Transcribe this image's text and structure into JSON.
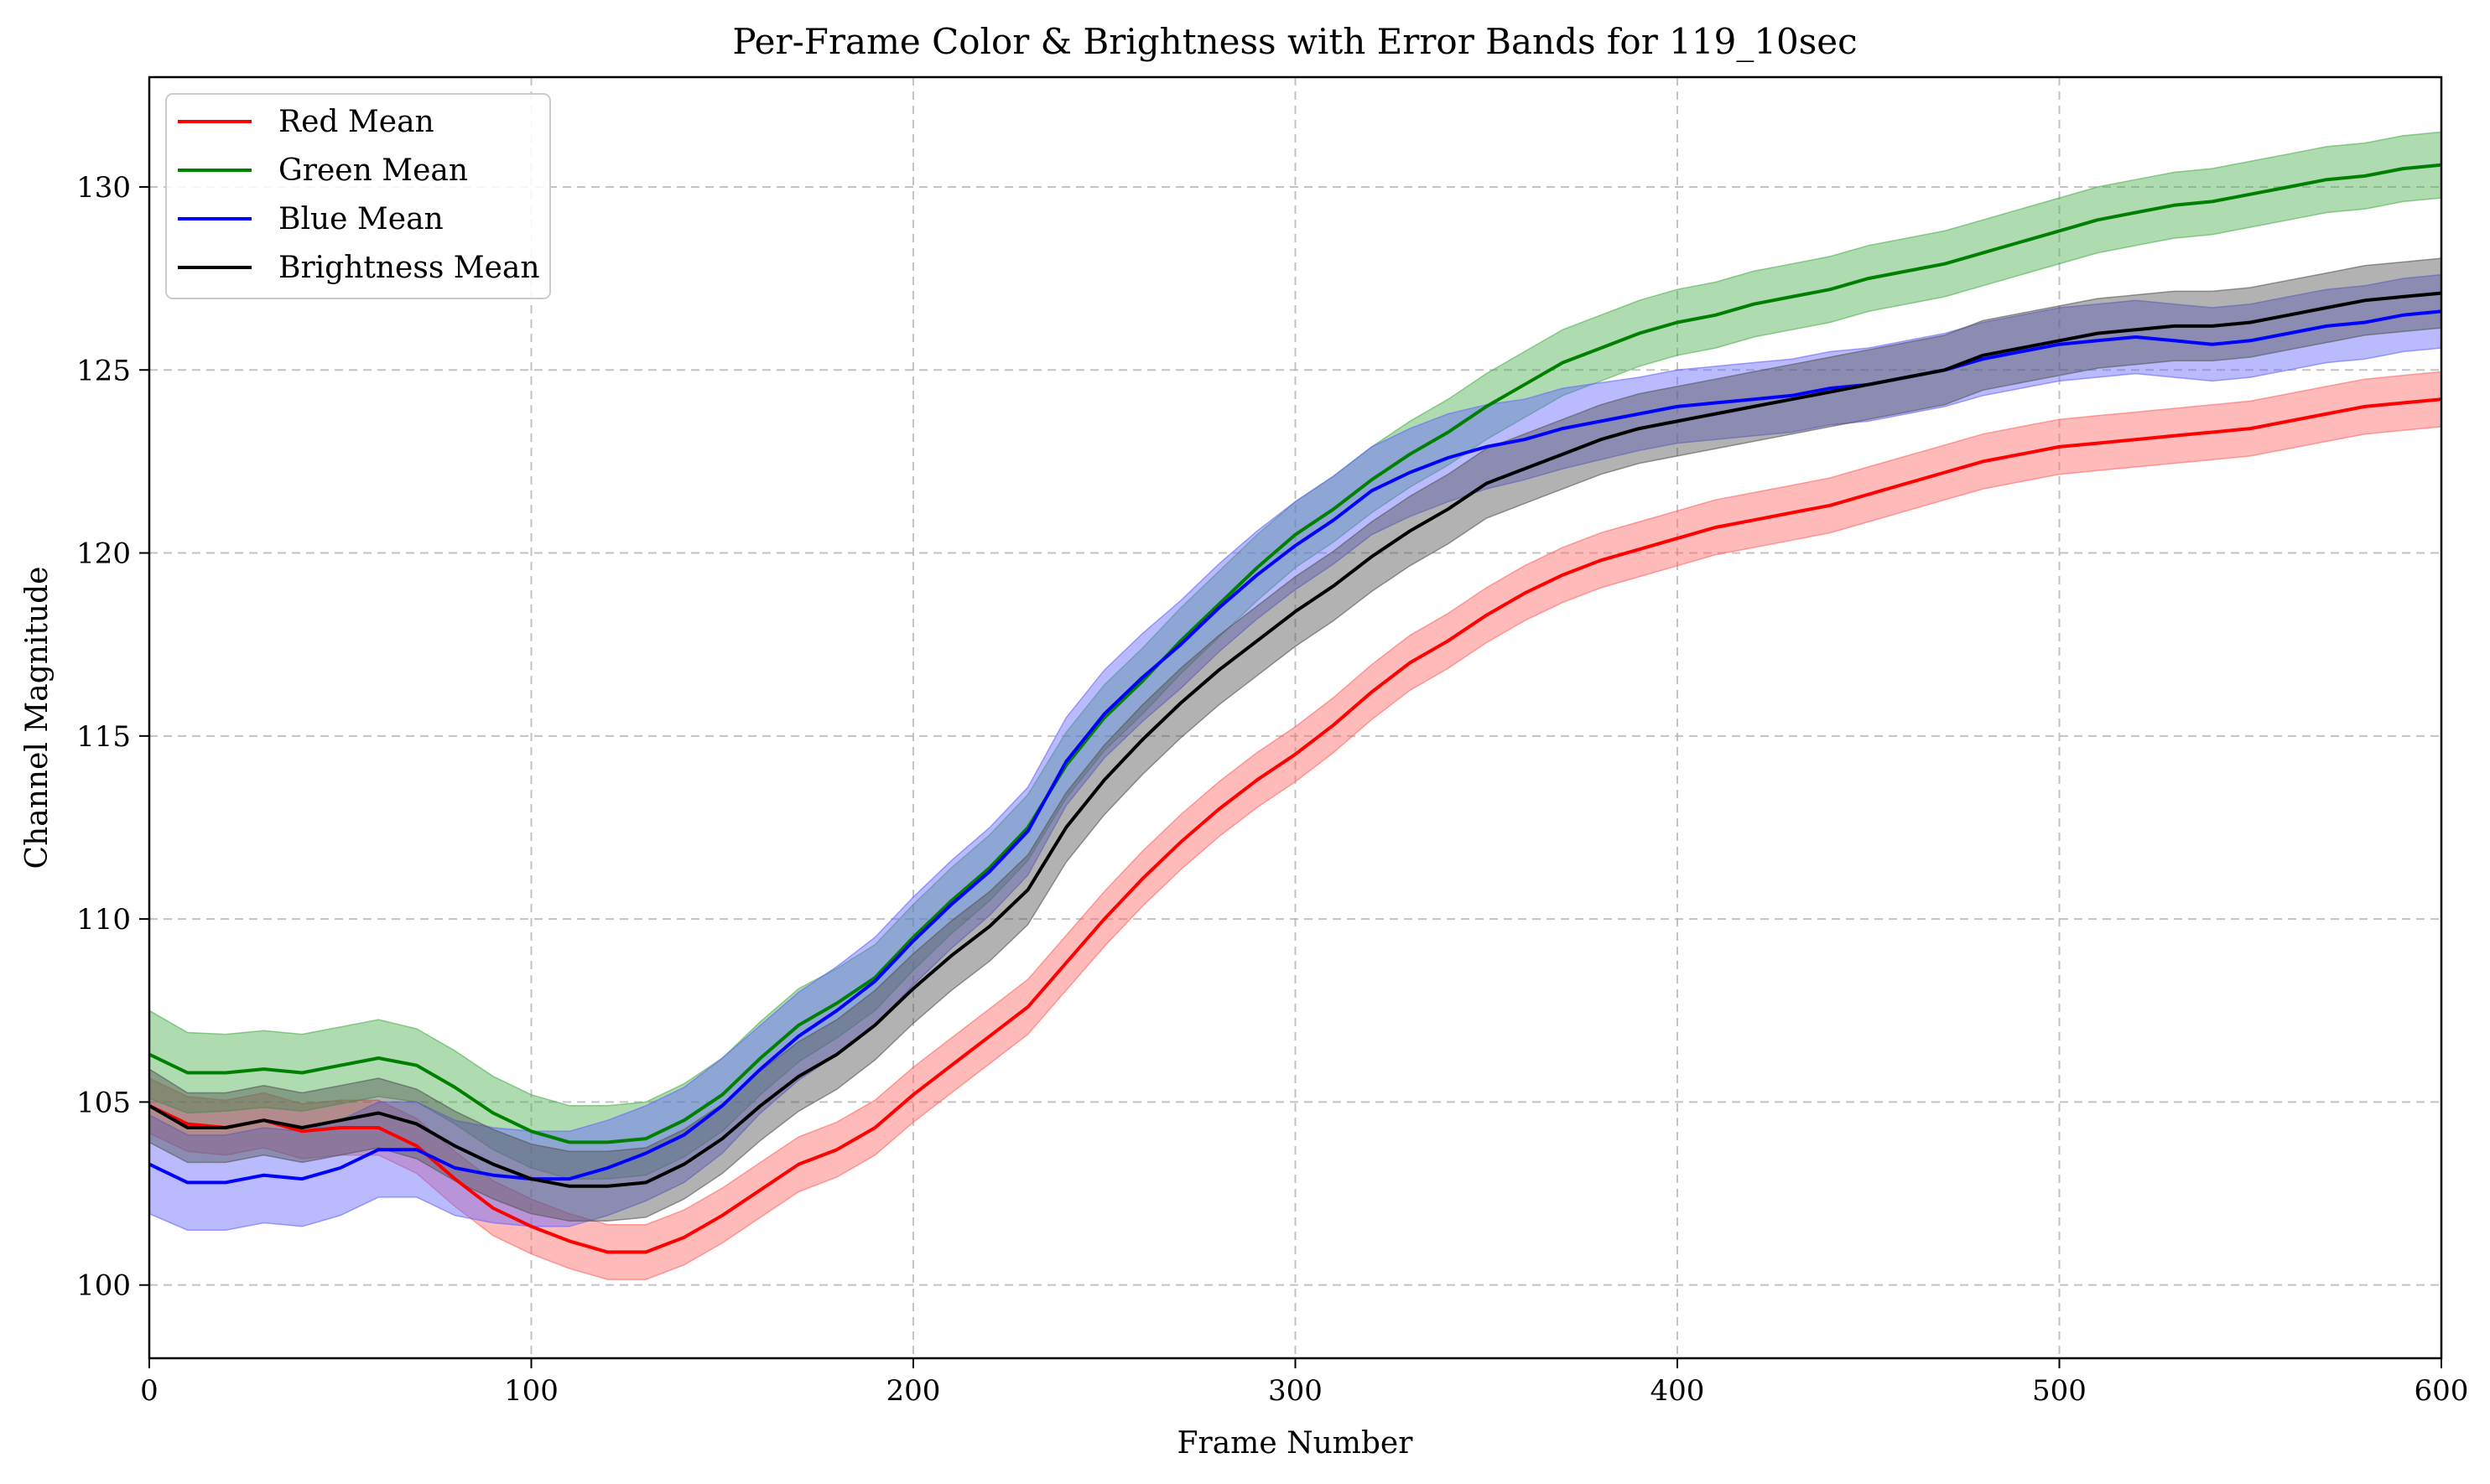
{
  "chart_data": {
    "type": "line",
    "title": "Per-Frame Color & Brightness with Error Bands for 119_10sec",
    "xlabel": "Frame Number",
    "ylabel": "Channel Magnitude",
    "xlim": [
      0,
      600
    ],
    "ylim": [
      98,
      133
    ],
    "xticks": [
      0,
      100,
      200,
      300,
      400,
      500,
      600
    ],
    "yticks": [
      100,
      105,
      110,
      115,
      120,
      125,
      130
    ],
    "grid": true,
    "legend_position": "top-left",
    "error_bands": true,
    "x": [
      0,
      10,
      20,
      30,
      40,
      50,
      60,
      70,
      80,
      90,
      100,
      110,
      120,
      130,
      140,
      150,
      160,
      170,
      180,
      190,
      200,
      210,
      220,
      230,
      240,
      250,
      260,
      270,
      280,
      290,
      300,
      310,
      320,
      330,
      340,
      350,
      360,
      370,
      380,
      390,
      400,
      410,
      420,
      430,
      440,
      450,
      460,
      470,
      480,
      490,
      500,
      510,
      520,
      530,
      540,
      550,
      560,
      570,
      580,
      590,
      600
    ],
    "series": [
      {
        "name": "Red Mean",
        "color": "#ff0000",
        "band_color": "#ff6666",
        "values": [
          104.9,
          104.4,
          104.3,
          104.5,
          104.2,
          104.3,
          104.3,
          103.8,
          102.9,
          102.1,
          101.6,
          101.2,
          100.9,
          100.9,
          101.3,
          101.9,
          102.6,
          103.3,
          103.7,
          104.3,
          105.2,
          106.0,
          106.8,
          107.6,
          108.8,
          110.0,
          111.1,
          112.1,
          113.0,
          113.8,
          114.5,
          115.3,
          116.2,
          117.0,
          117.6,
          118.3,
          118.9,
          119.4,
          119.8,
          120.1,
          120.4,
          120.7,
          120.9,
          121.1,
          121.3,
          121.6,
          121.9,
          122.2,
          122.5,
          122.7,
          122.9,
          123.0,
          123.1,
          123.2,
          123.3,
          123.4,
          123.6,
          123.8,
          124.0,
          124.1,
          124.2
        ],
        "err": [
          0.75,
          0.75,
          0.75,
          0.75,
          0.75,
          0.75,
          0.75,
          0.75,
          0.75,
          0.75,
          0.75,
          0.75,
          0.75,
          0.75,
          0.75,
          0.75,
          0.75,
          0.75,
          0.75,
          0.75,
          0.75,
          0.75,
          0.75,
          0.75,
          0.75,
          0.75,
          0.75,
          0.75,
          0.75,
          0.75,
          0.75,
          0.75,
          0.75,
          0.75,
          0.75,
          0.75,
          0.75,
          0.75,
          0.75,
          0.75,
          0.75,
          0.75,
          0.75,
          0.75,
          0.75,
          0.75,
          0.75,
          0.75,
          0.75,
          0.75,
          0.75,
          0.75,
          0.75,
          0.75,
          0.75,
          0.75,
          0.75,
          0.75,
          0.75,
          0.75,
          0.75
        ]
      },
      {
        "name": "Green Mean",
        "color": "#008000",
        "band_color": "#4caf50",
        "values": [
          106.3,
          105.8,
          105.8,
          105.9,
          105.8,
          106.0,
          106.2,
          106.0,
          105.4,
          104.7,
          104.2,
          103.9,
          103.9,
          104.0,
          104.5,
          105.2,
          106.2,
          107.1,
          107.7,
          108.4,
          109.5,
          110.5,
          111.4,
          112.5,
          114.2,
          115.5,
          116.5,
          117.6,
          118.6,
          119.6,
          120.5,
          121.2,
          122.0,
          122.7,
          123.3,
          124.0,
          124.6,
          125.2,
          125.6,
          126.0,
          126.3,
          126.5,
          126.8,
          127.0,
          127.2,
          127.5,
          127.7,
          127.9,
          128.2,
          128.5,
          128.8,
          129.1,
          129.3,
          129.5,
          129.6,
          129.8,
          130.0,
          130.2,
          130.3,
          130.5,
          130.6
        ],
        "err": [
          1.2,
          1.1,
          1.05,
          1.05,
          1.05,
          1.05,
          1.05,
          1.0,
          1.0,
          1.0,
          1.0,
          1.0,
          1.0,
          1.0,
          1.0,
          1.0,
          1.0,
          1.0,
          0.95,
          0.9,
          0.9,
          0.9,
          0.9,
          0.9,
          0.9,
          0.9,
          0.9,
          0.9,
          0.9,
          0.9,
          0.9,
          0.9,
          0.9,
          0.9,
          0.9,
          0.9,
          0.9,
          0.9,
          0.9,
          0.9,
          0.9,
          0.9,
          0.9,
          0.9,
          0.9,
          0.9,
          0.9,
          0.9,
          0.9,
          0.9,
          0.9,
          0.9,
          0.9,
          0.9,
          0.9,
          0.9,
          0.9,
          0.9,
          0.9,
          0.9,
          0.9
        ]
      },
      {
        "name": "Blue Mean",
        "color": "#0000ff",
        "band_color": "#6666ff",
        "values": [
          103.3,
          102.8,
          102.8,
          103.0,
          102.9,
          103.2,
          103.7,
          103.7,
          103.2,
          103.0,
          102.9,
          102.9,
          103.2,
          103.6,
          104.1,
          104.9,
          105.9,
          106.8,
          107.5,
          108.3,
          109.4,
          110.4,
          111.3,
          112.4,
          114.3,
          115.6,
          116.6,
          117.5,
          118.5,
          119.4,
          120.2,
          120.9,
          121.7,
          122.2,
          122.6,
          122.9,
          123.1,
          123.4,
          123.6,
          123.8,
          124.0,
          124.1,
          124.2,
          124.3,
          124.5,
          124.6,
          124.8,
          125.0,
          125.3,
          125.5,
          125.7,
          125.8,
          125.9,
          125.8,
          125.7,
          125.8,
          126.0,
          126.2,
          126.3,
          126.5,
          126.6
        ],
        "err": [
          1.35,
          1.3,
          1.3,
          1.3,
          1.3,
          1.3,
          1.3,
          1.3,
          1.3,
          1.3,
          1.3,
          1.3,
          1.3,
          1.3,
          1.3,
          1.3,
          1.2,
          1.2,
          1.2,
          1.2,
          1.2,
          1.2,
          1.2,
          1.2,
          1.2,
          1.2,
          1.2,
          1.2,
          1.2,
          1.2,
          1.2,
          1.2,
          1.2,
          1.2,
          1.2,
          1.15,
          1.1,
          1.1,
          1.05,
          1.0,
          1.0,
          1.0,
          1.0,
          1.0,
          1.0,
          1.0,
          1.0,
          1.0,
          1.0,
          1.0,
          1.0,
          1.0,
          1.0,
          1.0,
          1.0,
          1.0,
          1.0,
          1.0,
          1.0,
          1.0,
          1.0
        ]
      },
      {
        "name": "Brightness Mean",
        "color": "#000000",
        "band_color": "#555555",
        "values": [
          104.9,
          104.3,
          104.3,
          104.5,
          104.3,
          104.5,
          104.7,
          104.4,
          103.8,
          103.3,
          102.9,
          102.7,
          102.7,
          102.8,
          103.3,
          104.0,
          104.9,
          105.7,
          106.3,
          107.1,
          108.1,
          109.0,
          109.8,
          110.8,
          112.5,
          113.8,
          114.9,
          115.9,
          116.8,
          117.6,
          118.4,
          119.1,
          119.9,
          120.6,
          121.2,
          121.9,
          122.3,
          122.7,
          123.1,
          123.4,
          123.6,
          123.8,
          124.0,
          124.2,
          124.4,
          124.6,
          124.8,
          125.0,
          125.4,
          125.6,
          125.8,
          126.0,
          126.1,
          126.2,
          126.2,
          126.3,
          126.5,
          126.7,
          126.9,
          127.0,
          127.1
        ],
        "err": [
          1.0,
          0.95,
          0.95,
          0.95,
          0.95,
          0.95,
          0.95,
          0.95,
          0.95,
          0.95,
          0.95,
          0.95,
          0.95,
          0.95,
          0.95,
          0.95,
          0.95,
          0.95,
          0.95,
          0.95,
          0.95,
          0.95,
          0.95,
          0.95,
          0.95,
          0.95,
          0.95,
          0.95,
          0.95,
          0.95,
          0.95,
          0.95,
          0.95,
          0.95,
          0.95,
          0.95,
          0.95,
          0.95,
          0.95,
          0.95,
          0.95,
          0.95,
          0.95,
          0.95,
          0.95,
          0.95,
          0.95,
          0.95,
          0.95,
          0.95,
          0.95,
          0.95,
          0.95,
          0.95,
          0.95,
          0.95,
          0.95,
          0.95,
          0.95,
          0.95,
          0.95
        ]
      }
    ]
  }
}
